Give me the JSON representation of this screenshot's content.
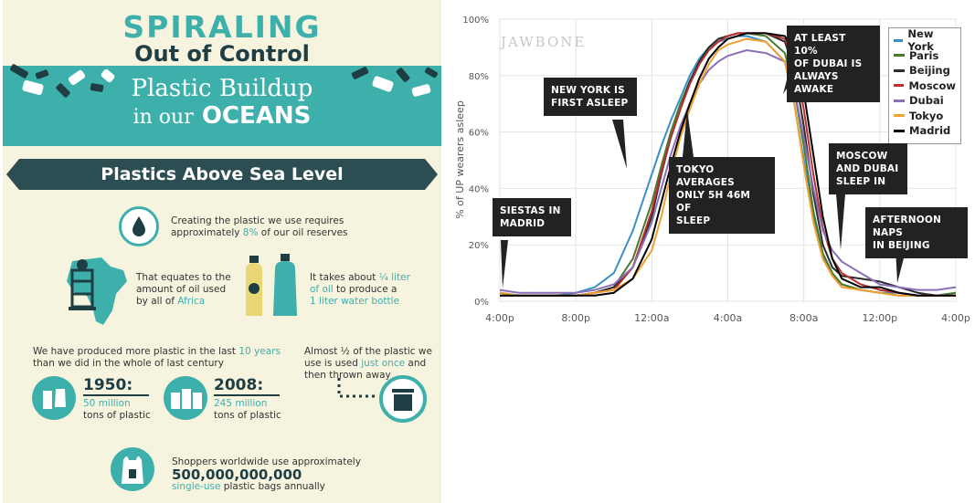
{
  "infographic": {
    "title_line1": "SPIRALING",
    "title_line2": "Out of Control",
    "title_line3": "Plastic Buildup",
    "title_line4_small": "in our",
    "title_line4_big": "OCEANS",
    "section_title": "Plastics Above Sea Level",
    "fact_oil_a": "Creating the plastic we use requires",
    "fact_oil_b1": "approximately ",
    "fact_oil_b2": "8%",
    "fact_oil_b3": " of our oil reserves",
    "fact_africa_1": "That equates to the",
    "fact_africa_2": "amount of oil used",
    "fact_africa_3": "by all of ",
    "fact_africa_4": "Africa",
    "fact_bottle_1": "It takes about ",
    "fact_bottle_2": "¼ liter",
    "fact_bottle_3": "of oil",
    "fact_bottle_4": " to produce a",
    "fact_bottle_5": "1 liter water bottle",
    "fact_decade_1": "We have produced more plastic in the last ",
    "fact_decade_2": "10 years",
    "fact_decade_3": "than we did in the whole of last century",
    "year1": "1950:",
    "year1_amount": "50 million",
    "year1_unit": "tons of plastic",
    "year2": "2008:",
    "year2_amount": "245 million",
    "year2_unit": "tons of plastic",
    "fact_once_1": "Almost ½ of the plastic we",
    "fact_once_2": "use is used ",
    "fact_once_3": "just once",
    "fact_once_4": " and",
    "fact_once_5": "then thrown away",
    "fact_bags_1": "Shoppers worldwide use approximately",
    "fact_bags_2": "500,000,000,000",
    "fact_bags_3": "single-use",
    "fact_bags_4": " plastic bags annually",
    "colors": {
      "teal": "#3eb0ac",
      "dark": "#1f3e44",
      "cream": "#f6f3df"
    }
  },
  "chart_data": {
    "type": "line",
    "watermark": "JAWBONE",
    "title": "",
    "xlabel": "",
    "ylabel": "% of UP wearers asleep",
    "x_ticks": [
      "4:00p",
      "8:00p",
      "12:00a",
      "4:00a",
      "8:00a",
      "12:00p",
      "4:00p"
    ],
    "y_ticks": [
      "0%",
      "20%",
      "40%",
      "60%",
      "80%",
      "100%"
    ],
    "ylim": [
      0,
      100
    ],
    "x_hours": [
      0,
      1,
      2,
      3,
      4,
      5,
      6,
      7,
      8,
      8.5,
      9,
      9.5,
      10,
      10.5,
      11,
      11.5,
      12,
      12.5,
      13,
      14,
      15,
      15.5,
      16,
      16.5,
      17,
      17.5,
      18,
      19,
      20,
      21,
      22,
      23,
      24
    ],
    "legend_position": "top-right",
    "series": [
      {
        "name": "New York",
        "color": "#3a8fc8",
        "values": [
          3,
          2,
          2,
          2,
          3,
          5,
          10,
          25,
          45,
          55,
          64,
          72,
          80,
          86,
          90,
          92,
          93,
          94,
          94,
          92,
          85,
          70,
          50,
          30,
          16,
          9,
          6,
          4,
          3,
          3,
          2,
          2,
          3
        ]
      },
      {
        "name": "Paris",
        "color": "#4a7a2e",
        "values": [
          3,
          2,
          2,
          2,
          2,
          3,
          5,
          15,
          35,
          48,
          60,
          70,
          78,
          85,
          90,
          93,
          94,
          95,
          95,
          94,
          88,
          75,
          55,
          32,
          17,
          10,
          6,
          4,
          3,
          2,
          2,
          2,
          3
        ]
      },
      {
        "name": "Beijing",
        "color": "#2b2b2b",
        "values": [
          2,
          2,
          2,
          2,
          2,
          3,
          5,
          12,
          30,
          45,
          58,
          68,
          78,
          85,
          90,
          93,
          94,
          95,
          95,
          95,
          92,
          82,
          62,
          38,
          20,
          12,
          9,
          8,
          7,
          5,
          3,
          2,
          2
        ]
      },
      {
        "name": "Moscow",
        "color": "#b83030",
        "values": [
          2,
          2,
          2,
          2,
          2,
          3,
          4,
          12,
          32,
          46,
          58,
          68,
          77,
          84,
          89,
          92,
          94,
          95,
          95,
          95,
          93,
          85,
          68,
          45,
          26,
          15,
          10,
          6,
          4,
          3,
          2,
          2,
          2
        ]
      },
      {
        "name": "Dubai",
        "color": "#8b6fb8",
        "values": [
          4,
          3,
          3,
          3,
          3,
          4,
          6,
          12,
          28,
          40,
          52,
          62,
          70,
          77,
          82,
          85,
          87,
          88,
          89,
          88,
          85,
          75,
          58,
          40,
          25,
          18,
          14,
          10,
          6,
          5,
          4,
          4,
          5
        ]
      },
      {
        "name": "Tokyo",
        "color": "#f0a030",
        "values": [
          3,
          2,
          2,
          2,
          2,
          3,
          4,
          8,
          18,
          30,
          45,
          58,
          68,
          77,
          84,
          89,
          91,
          92,
          93,
          92,
          85,
          70,
          48,
          28,
          15,
          9,
          5,
          4,
          3,
          2,
          2,
          2,
          2
        ]
      },
      {
        "name": "Madrid",
        "color": "#000000",
        "values": [
          2,
          2,
          2,
          2,
          2,
          2,
          3,
          8,
          22,
          35,
          48,
          60,
          70,
          79,
          86,
          90,
          93,
          94,
          95,
          95,
          94,
          88,
          74,
          52,
          30,
          15,
          8,
          5,
          5,
          3,
          2,
          2,
          2
        ]
      }
    ],
    "annotations": [
      {
        "id": "siestas",
        "text1": "SIESTAS IN",
        "text2": "MADRID"
      },
      {
        "id": "newyork",
        "text1": "NEW YORK IS",
        "text2": "FIRST ASLEEP"
      },
      {
        "id": "tokyo",
        "text1": "TOKYO AVERAGES",
        "text2": "ONLY 5H 46M OF",
        "text3": "SLEEP"
      },
      {
        "id": "dubai",
        "text1": "AT LEAST 10%",
        "text2": "OF DUBAI IS",
        "text3": "ALWAYS AWAKE"
      },
      {
        "id": "moscow",
        "text1": "MOSCOW",
        "text2": "AND DUBAI",
        "text3": "SLEEP IN"
      },
      {
        "id": "beijing",
        "text1": "AFTERNOON NAPS",
        "text2": "IN BEIJING"
      }
    ]
  }
}
